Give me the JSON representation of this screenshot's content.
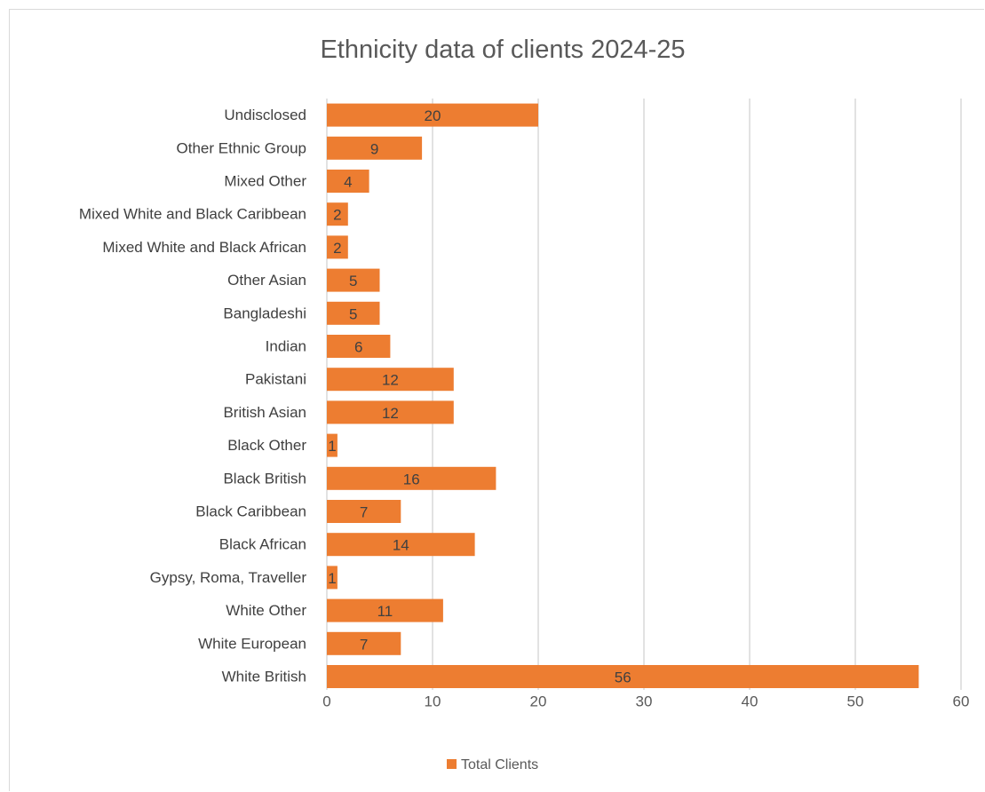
{
  "chart_data": {
    "type": "bar",
    "orientation": "horizontal",
    "title": "Ethnicity data of clients 2024-25",
    "xlabel": "",
    "ylabel": "",
    "categories": [
      "Undisclosed",
      "Other Ethnic Group",
      "Mixed Other",
      "Mixed White and Black Caribbean",
      "Mixed White and Black African",
      "Other Asian",
      "Bangladeshi",
      "Indian",
      "Pakistani",
      "British Asian",
      "Black Other",
      "Black British",
      "Black Caribbean",
      "Black African",
      "Gypsy, Roma, Traveller",
      "White Other",
      "White European",
      "White British"
    ],
    "series": [
      {
        "name": "Total Clients",
        "values": [
          20,
          9,
          4,
          2,
          2,
          5,
          5,
          6,
          12,
          12,
          1,
          16,
          7,
          14,
          1,
          11,
          7,
          56
        ],
        "color": "#ed7d31"
      }
    ],
    "xlim": [
      0,
      60
    ],
    "xticks": [
      "0",
      "10",
      "20",
      "30",
      "40",
      "50",
      "60"
    ],
    "grid": "vertical",
    "legend_position": "bottom",
    "data_labels": true
  }
}
